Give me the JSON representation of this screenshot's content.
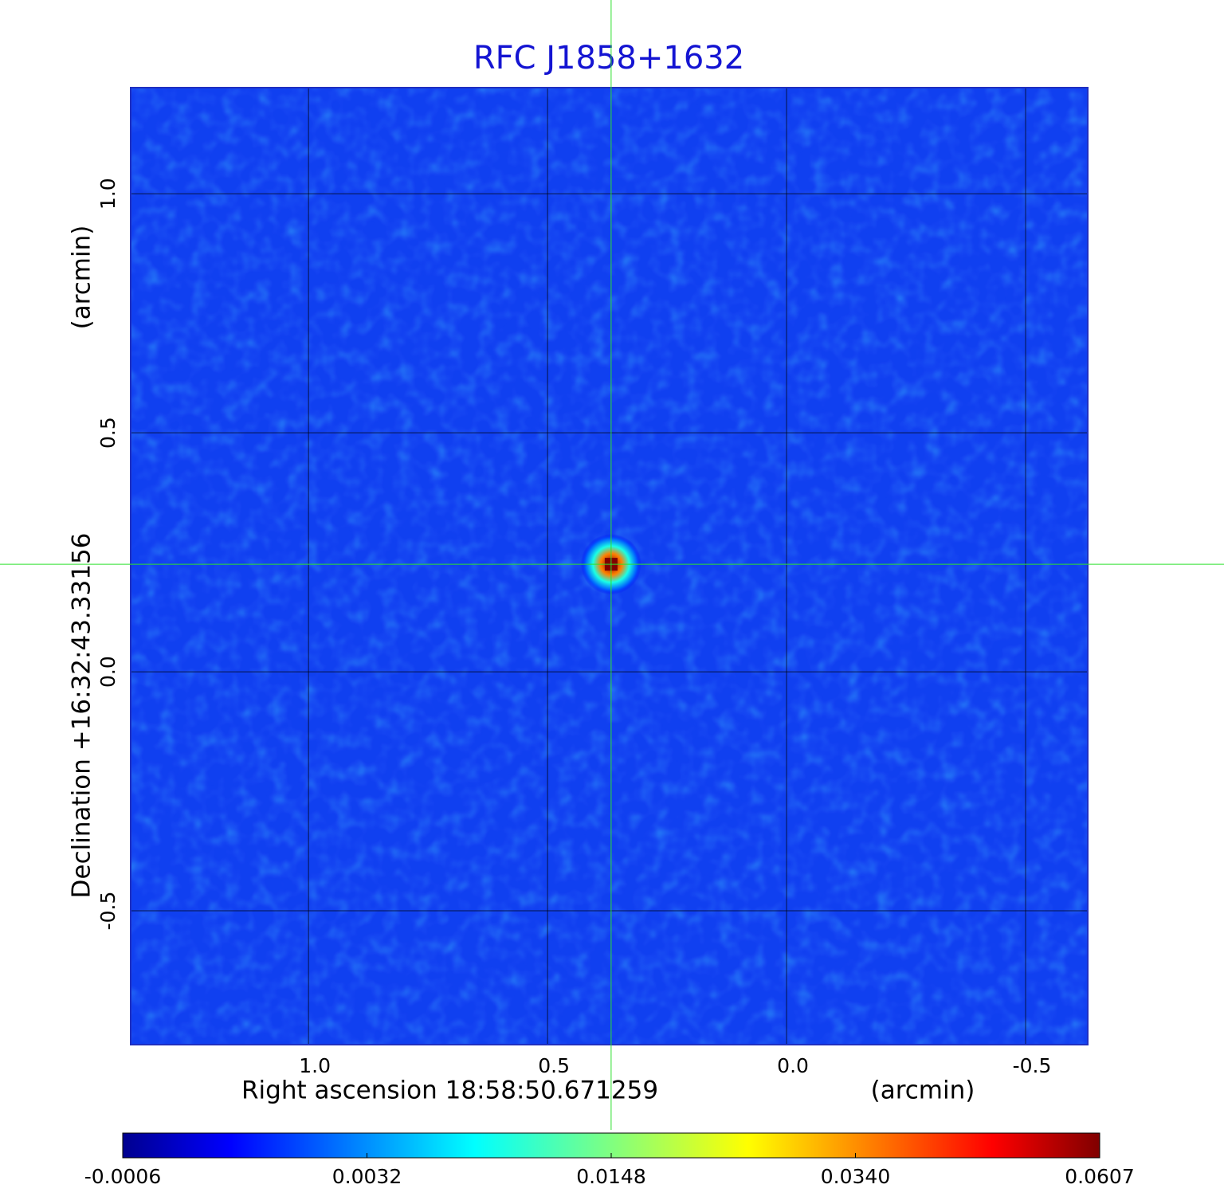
{
  "chart_data": {
    "type": "image",
    "title": "RFC J1858+1632",
    "x_label": "Right ascension  18:58:50.671259",
    "x_unit": "(arcmin)",
    "y_label": "Declination  +16:32:43.33156",
    "y_unit": "(arcmin)",
    "xlim": [
      1.372,
      -0.63
    ],
    "ylim": [
      -0.78,
      1.222
    ],
    "xticks": [
      {
        "value": 1,
        "label": "1.0"
      },
      0.5,
      {
        "value": 0,
        "label": "0.0"
      },
      -0.5
    ],
    "yticks": [
      {
        "value": 1,
        "label": "1.0"
      },
      0.5,
      {
        "value": 0,
        "label": "0.0"
      },
      -0.5
    ],
    "grid": true,
    "source": {
      "x": 0.367,
      "y": 0.225,
      "peak": 0.0607
    },
    "colormap": "jet",
    "colorbar": {
      "lim": [
        -0.0006,
        0.0607
      ],
      "ticks": [
        -0.0006,
        0.0032,
        0.0148,
        {
          "value": 0.034,
          "label": "0.0340"
        },
        0.0607
      ]
    }
  }
}
